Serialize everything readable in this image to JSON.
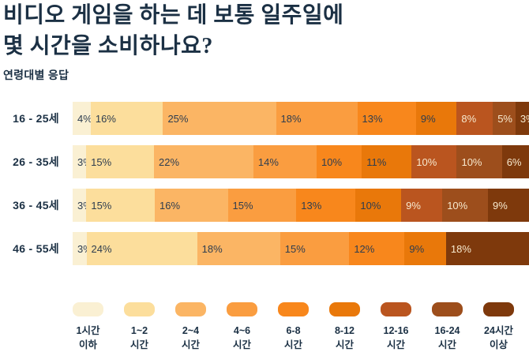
{
  "title": {
    "line1": "비디오 게임을 하는 데 보통 일주일에",
    "line2": "몇 시간을 소비하나요?"
  },
  "subtitle": "연령대별 응답",
  "colors": {
    "background": "#FFFFFF",
    "heading_text": "#1B3044",
    "value_label_dark": "#2E3D4F",
    "value_label_light": "#F7E9CE"
  },
  "chart_data": {
    "type": "bar",
    "variant": "horizontal-stacked",
    "unit": "%",
    "value_labels_visible": true,
    "legend_position": "bottom",
    "categories": [
      "16 - 25세",
      "26 - 35세",
      "36 - 45세",
      "46 - 55세"
    ],
    "series": [
      {
        "name": "1시간 이하",
        "legend_lines": [
          "1시간",
          "이하"
        ],
        "color": "#FAF0D3",
        "text": "dark",
        "values": [
          4,
          3,
          3,
          3
        ]
      },
      {
        "name": "1~2 시간",
        "legend_lines": [
          "1~2",
          "시간"
        ],
        "color": "#FCDE9C",
        "text": "dark",
        "values": [
          16,
          15,
          15,
          24
        ]
      },
      {
        "name": "2~4 시간",
        "legend_lines": [
          "2~4",
          "시간"
        ],
        "color": "#FBB564",
        "text": "dark",
        "values": [
          25,
          22,
          16,
          18
        ]
      },
      {
        "name": "4~6 시간",
        "legend_lines": [
          "4~6",
          "시간"
        ],
        "color": "#FA9D40",
        "text": "dark",
        "values": [
          18,
          14,
          15,
          15
        ]
      },
      {
        "name": "6-8 시간",
        "legend_lines": [
          "6-8",
          "시간"
        ],
        "color": "#F8871C",
        "text": "dark",
        "values": [
          13,
          10,
          13,
          12
        ]
      },
      {
        "name": "8-12 시간",
        "legend_lines": [
          "8-12",
          "시간"
        ],
        "color": "#E9780A",
        "text": "dark",
        "values": [
          9,
          11,
          10,
          9
        ]
      },
      {
        "name": "12-16 시간",
        "legend_lines": [
          "12-16",
          "시간"
        ],
        "color": "#BA551F",
        "text": "light",
        "values": [
          8,
          10,
          9,
          null
        ]
      },
      {
        "name": "16-24 시간",
        "legend_lines": [
          "16-24",
          "시간"
        ],
        "color": "#9D4E1C",
        "text": "light",
        "values": [
          5,
          10,
          10,
          null
        ]
      },
      {
        "name": "24시간 이상",
        "legend_lines": [
          "24시간",
          "이상"
        ],
        "color": "#7E390C",
        "text": "light",
        "values": [
          3,
          6,
          9,
          18
        ]
      }
    ]
  }
}
